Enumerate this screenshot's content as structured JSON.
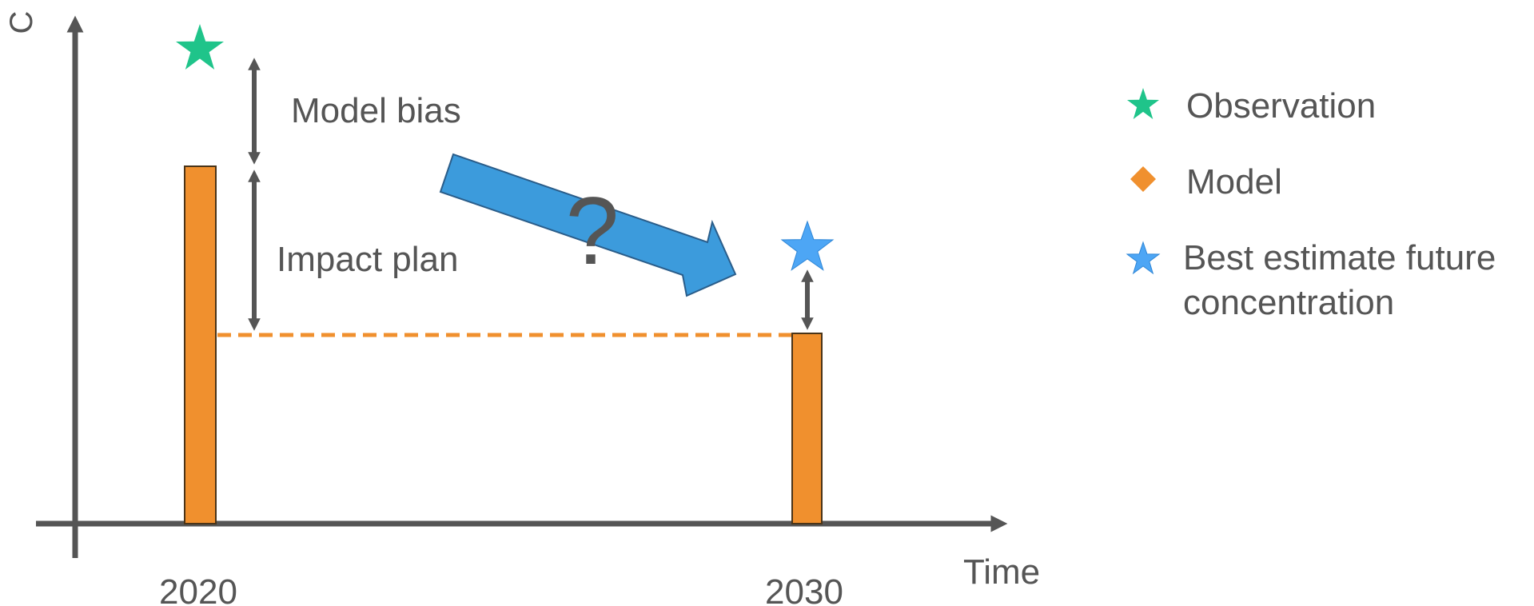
{
  "colors": {
    "axis": "#555555",
    "text": "#555555",
    "bar": "#F0902E",
    "bar_stroke": "#4A3418",
    "observation_star": "#1FC48A",
    "future_star": "#4DA6F5",
    "trend_arrow": "#3C9BDC",
    "trend_arrow_stroke": "#2A5D8A"
  },
  "axes": {
    "y_label": "C",
    "x_label": "Time",
    "x_ticks": [
      "2020",
      "2030"
    ]
  },
  "annotations": {
    "model_bias": "Model bias",
    "impact_plan": "Impact plan",
    "question": "?"
  },
  "legend": {
    "observation": {
      "label": "Observation",
      "icon": "star-icon"
    },
    "model": {
      "label": "Model",
      "icon": "diamond-icon"
    },
    "future": {
      "line1": "Best estimate future",
      "line2": "concentration",
      "icon": "star-icon"
    }
  }
}
